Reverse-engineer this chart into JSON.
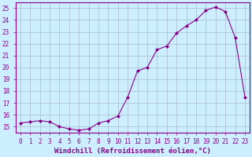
{
  "x": [
    0,
    1,
    2,
    3,
    4,
    5,
    6,
    7,
    8,
    9,
    10,
    11,
    12,
    13,
    14,
    15,
    16,
    17,
    18,
    19,
    20,
    21,
    22,
    23
  ],
  "y": [
    15.3,
    15.4,
    15.5,
    15.4,
    15.0,
    14.8,
    14.7,
    14.8,
    15.3,
    15.5,
    15.9,
    17.5,
    19.7,
    20.0,
    21.5,
    21.8,
    22.9,
    23.5,
    24.0,
    24.8,
    25.1,
    24.7,
    22.5,
    17.5
  ],
  "line_color": "#880088",
  "marker": "D",
  "markersize": 2.0,
  "linewidth": 0.8,
  "xlabel": "Windchill (Refroidissement éolien,°C)",
  "xlabel_fontsize": 6.5,
  "bg_color": "#cceeff",
  "grid_color": "#aabbcc",
  "ylim": [
    14.5,
    25.5
  ],
  "yticks": [
    15,
    16,
    17,
    18,
    19,
    20,
    21,
    22,
    23,
    24,
    25
  ],
  "xtick_labels": [
    "0",
    "1",
    "2",
    "3",
    "4",
    "5",
    "6",
    "7",
    "8",
    "9",
    "10",
    "11",
    "12",
    "13",
    "14",
    "15",
    "16",
    "17",
    "18",
    "19",
    "20",
    "21",
    "22",
    "23"
  ],
  "tick_fontsize": 5.5,
  "tick_color": "#880088",
  "spine_color": "#880088",
  "grid_linewidth": 0.5
}
